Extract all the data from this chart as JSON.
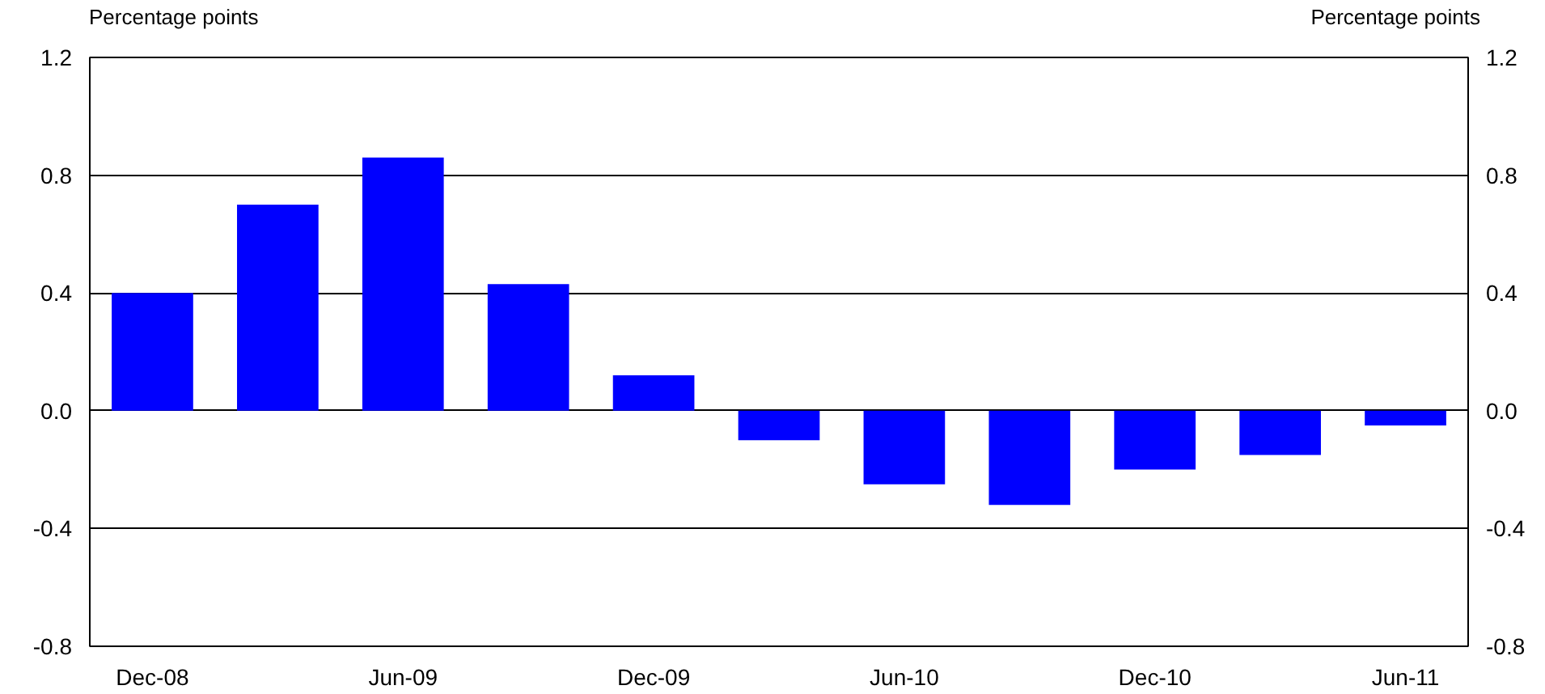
{
  "chart_data": {
    "type": "bar",
    "ylabel": "Percentage points",
    "y2label": "Percentage points",
    "categories": [
      "Dec-08",
      null,
      "Jun-09",
      null,
      "Dec-09",
      null,
      "Jun-10",
      null,
      "Dec-10",
      null,
      "Jun-11"
    ],
    "values": [
      0.4,
      0.7,
      0.86,
      0.43,
      0.12,
      -0.1,
      -0.25,
      -0.32,
      -0.2,
      -0.15,
      -0.05
    ],
    "color": "#0000ff",
    "ylim": [
      -0.8,
      1.2
    ],
    "yticks": [
      {
        "value": -0.8,
        "label": "-0.8"
      },
      {
        "value": -0.4,
        "label": "-0.4"
      },
      {
        "value": 0,
        "label": "0.0"
      },
      {
        "value": 0.4,
        "label": "0.4"
      },
      {
        "value": 0.8,
        "label": "0.8"
      },
      {
        "value": 1.2,
        "label": "1.2"
      }
    ],
    "y2lim": [
      -0.8,
      1.2
    ],
    "y2ticks": [
      {
        "value": -0.8,
        "label": "-0.8"
      },
      {
        "value": -0.4,
        "label": "-0.4"
      },
      {
        "value": 0,
        "label": "0.0"
      },
      {
        "value": 0.4,
        "label": "0.4"
      },
      {
        "value": 0.8,
        "label": "0.8"
      },
      {
        "value": 1.2,
        "label": "1.2"
      }
    ],
    "grid": "y"
  }
}
